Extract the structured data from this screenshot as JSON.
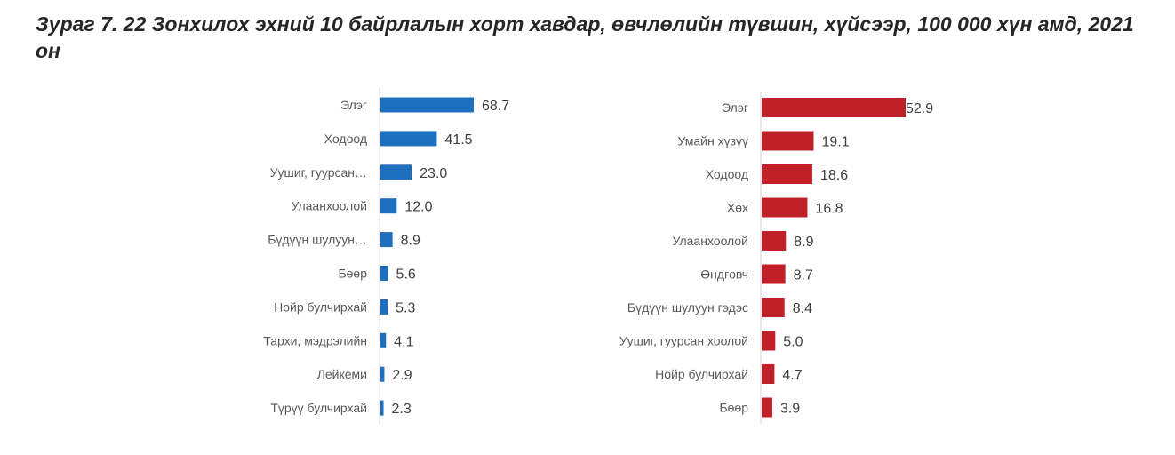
{
  "title": "Зураг 7. 22 Зонхилох эхний 10 байрлалын хорт хавдар, өвчлөлийн түвшин, хүйсээр, 100 000 хүн амд, 2021 он",
  "chart_data": [
    {
      "type": "bar",
      "orientation": "horizontal",
      "color": "#1f6fbf",
      "categories": [
        "Элэг",
        "Ходоод",
        "Уушиг, гуурсан…",
        "Улаанхоолой",
        "Бүдүүн шулуун…",
        "Бөөр",
        "Нойр булчирхай",
        "Тархи, мэдрэлийн",
        "Лейкеми",
        "Түрүү булчирхай"
      ],
      "values": [
        68.7,
        41.5,
        23.0,
        12.0,
        8.9,
        5.6,
        5.3,
        4.1,
        2.9,
        2.3
      ],
      "labels": [
        "68.7",
        "41.5",
        "23.0",
        "12.0",
        "8.9",
        "5.6",
        "5.3",
        "4.1",
        "2.9",
        "2.3"
      ],
      "grid": false
    },
    {
      "type": "bar",
      "orientation": "horizontal",
      "color": "#c0202a",
      "categories": [
        "Элэг",
        "Умайн хүзүү",
        "Ходоод",
        "Хөх",
        "Улаанхоолой",
        "Өндгөвч",
        "Бүдүүн шулуун гэдэс",
        "Уушиг, гуурсан хоолой",
        "Нойр булчирхай",
        "Бөөр"
      ],
      "values": [
        52.9,
        19.1,
        18.6,
        16.8,
        8.9,
        8.7,
        8.4,
        5.0,
        4.7,
        3.9
      ],
      "labels": [
        "52.9",
        "19.1",
        "18.6",
        "16.8",
        "8.9",
        "8.7",
        "8.4",
        "5.0",
        "4.7",
        "3.9"
      ],
      "grid": false
    }
  ]
}
